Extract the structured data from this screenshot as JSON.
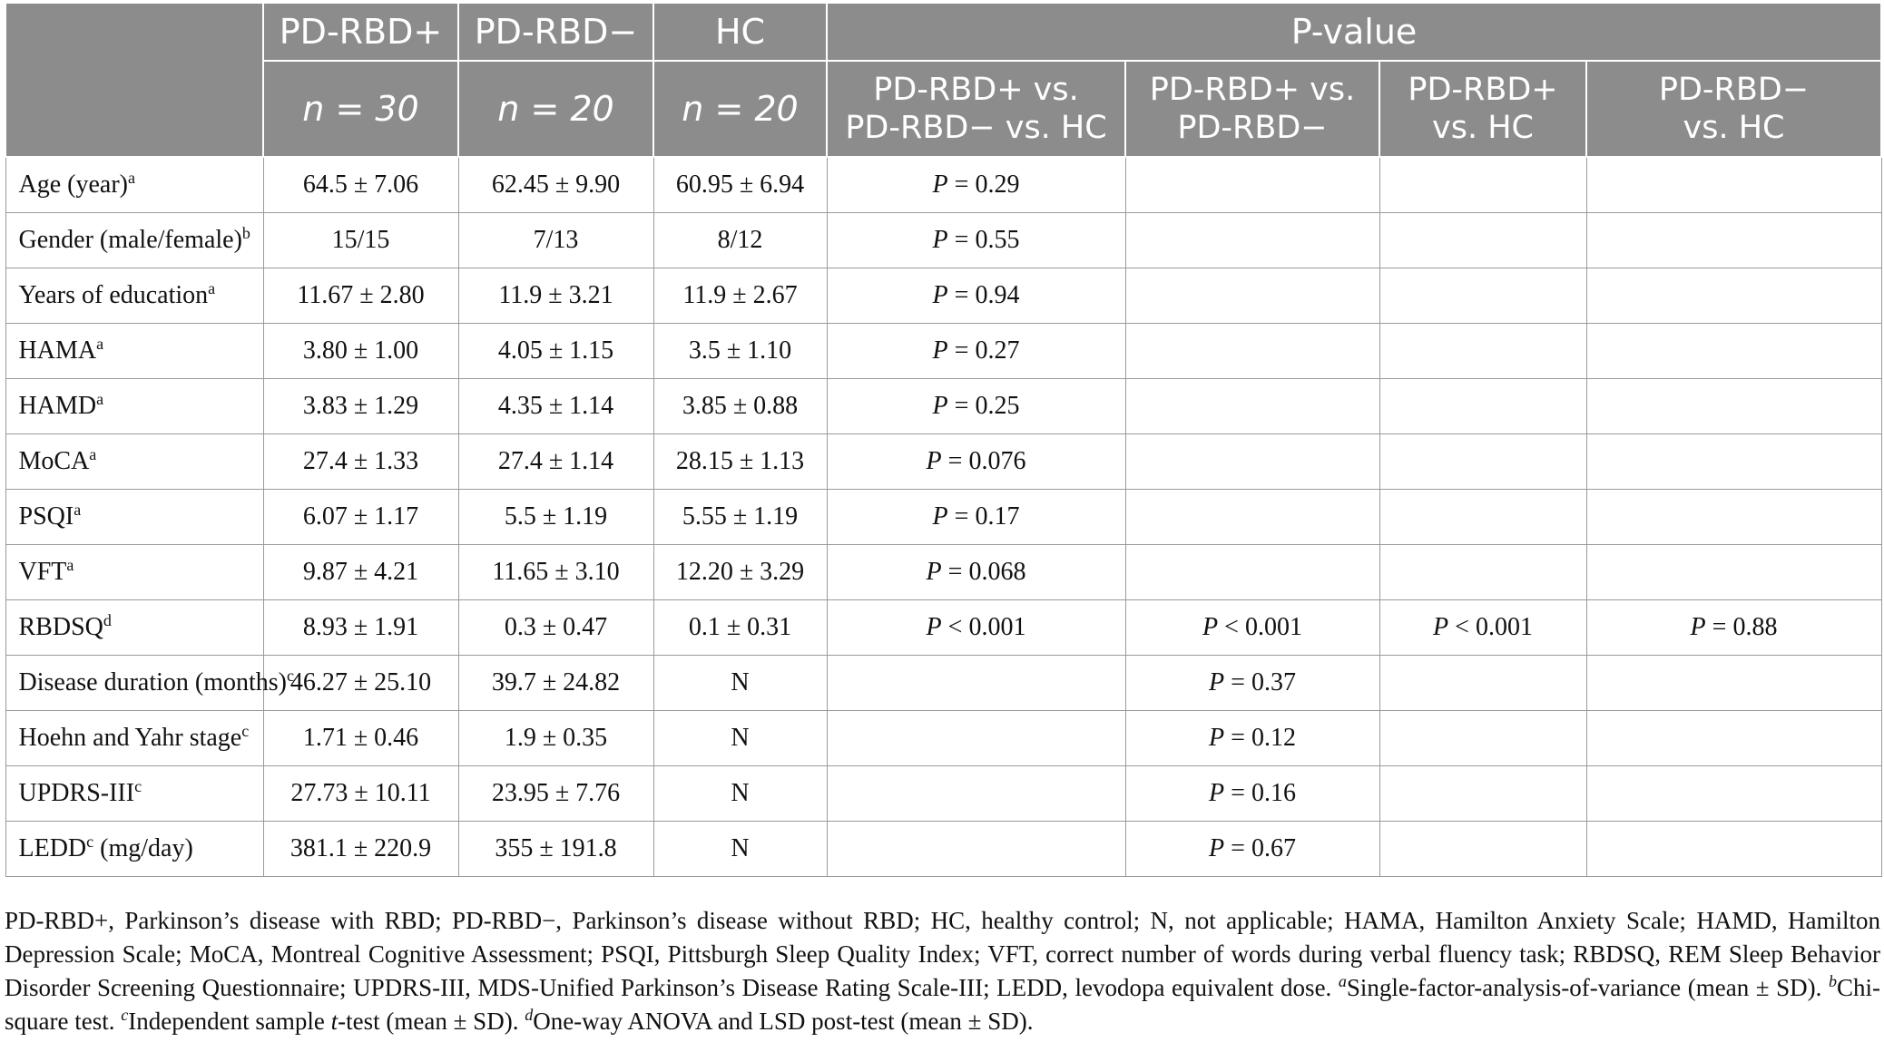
{
  "header": {
    "row1": [
      "",
      "PD-RBD+",
      "PD-RBD−",
      "HC",
      "P-value"
    ],
    "n_values": [
      "n = 30",
      "n = 20",
      "n = 20"
    ],
    "pvalue_cols": [
      [
        "PD-RBD+ vs.",
        "PD-RBD− vs. HC"
      ],
      [
        "PD-RBD+ vs.",
        "PD-RBD−"
      ],
      [
        "PD-RBD+",
        "vs. HC"
      ],
      [
        "PD-RBD−",
        "vs. HC"
      ]
    ]
  },
  "rows": [
    {
      "label": "Age (year)",
      "sup": "a",
      "after": "",
      "cells": [
        "64.5 ± 7.06",
        "62.45 ± 9.90",
        "60.95 ± 6.94",
        "P = 0.29",
        "",
        "",
        ""
      ]
    },
    {
      "label": "Gender (male/female)",
      "sup": "b",
      "after": "",
      "cells": [
        "15/15",
        "7/13",
        "8/12",
        "P = 0.55",
        "",
        "",
        ""
      ]
    },
    {
      "label": "Years of education",
      "sup": "a",
      "after": "",
      "cells": [
        "11.67 ± 2.80",
        "11.9 ± 3.21",
        "11.9 ± 2.67",
        "P = 0.94",
        "",
        "",
        ""
      ]
    },
    {
      "label": "HAMA",
      "sup": "a",
      "after": "",
      "cells": [
        "3.80 ± 1.00",
        "4.05 ± 1.15",
        "3.5 ± 1.10",
        "P = 0.27",
        "",
        "",
        ""
      ]
    },
    {
      "label": "HAMD",
      "sup": "a",
      "after": "",
      "cells": [
        "3.83 ± 1.29",
        "4.35 ± 1.14",
        "3.85 ± 0.88",
        "P = 0.25",
        "",
        "",
        ""
      ]
    },
    {
      "label": "MoCA",
      "sup": "a",
      "after": "",
      "cells": [
        "27.4 ± 1.33",
        "27.4 ± 1.14",
        "28.15 ± 1.13",
        "P = 0.076",
        "",
        "",
        ""
      ]
    },
    {
      "label": "PSQI",
      "sup": "a",
      "after": "",
      "cells": [
        "6.07 ± 1.17",
        "5.5 ± 1.19",
        "5.55 ± 1.19",
        "P = 0.17",
        "",
        "",
        ""
      ]
    },
    {
      "label": "VFT",
      "sup": "a",
      "after": "",
      "cells": [
        "9.87 ± 4.21",
        "11.65 ± 3.10",
        "12.20 ± 3.29",
        "P = 0.068",
        "",
        "",
        ""
      ]
    },
    {
      "label": "RBDSQ",
      "sup": "d",
      "after": "",
      "cells": [
        "8.93 ± 1.91",
        "0.3 ± 0.47",
        "0.1 ± 0.31",
        "P < 0.001",
        "P < 0.001",
        "P < 0.001",
        "P = 0.88"
      ]
    },
    {
      "label": "Disease duration (months)",
      "sup": "c",
      "after": "",
      "cells": [
        "46.27 ± 25.10",
        "39.7 ± 24.82",
        "N",
        "",
        "P = 0.37",
        "",
        ""
      ]
    },
    {
      "label": "Hoehn and Yahr stage",
      "sup": "c",
      "after": "",
      "cells": [
        "1.71 ± 0.46",
        "1.9 ± 0.35",
        "N",
        "",
        "P = 0.12",
        "",
        ""
      ]
    },
    {
      "label": "UPDRS-III",
      "sup": "c",
      "after": "",
      "cells": [
        "27.73 ± 10.11",
        "23.95 ± 7.76",
        "N",
        "",
        "P = 0.16",
        "",
        ""
      ]
    },
    {
      "label": "LEDD",
      "sup": "c",
      "after": " (mg/day)",
      "cells": [
        "381.1 ± 220.9",
        "355 ± 191.8",
        "N",
        "",
        "P = 0.67",
        "",
        ""
      ]
    }
  ],
  "footnote": {
    "abbreviations": "PD-RBD+, Parkinson’s disease with RBD; PD-RBD−, Parkinson’s disease without RBD; HC, healthy control; N, not applicable; HAMA, Hamilton Anxiety Scale; HAMD, Hamilton Depression Scale; MoCA, Montreal Cognitive Assessment; PSQI, Pittsburgh Sleep Quality Index; VFT, correct number of words during verbal fluency task; RBDSQ, REM Sleep Behavior Disorder Screening Questionnaire; UPDRS-III, MDS-Unified Parkinson’s Disease Rating Scale-III; LEDD, levodopa equivalent dose.",
    "notes": [
      {
        "mark": "a",
        "text": "Single-factor-analysis-of-variance (mean ± SD)."
      },
      {
        "mark": "b",
        "text": "Chi-square test."
      },
      {
        "mark": "c",
        "text": "Independent sample t-test (mean ± SD)."
      },
      {
        "mark": "d",
        "text": "One-way ANOVA and LSD post-test (mean ± SD)."
      }
    ]
  }
}
